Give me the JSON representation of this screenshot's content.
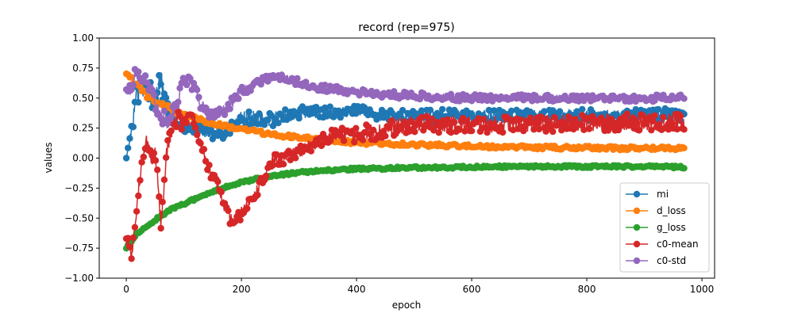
{
  "chart_data": {
    "type": "line",
    "title": "record (rep=975)",
    "xlabel": "epoch",
    "ylabel": "values",
    "xlim": [
      -47,
      1022
    ],
    "ylim": [
      -1.0,
      1.0
    ],
    "xticks": [
      0,
      200,
      400,
      600,
      800,
      1000
    ],
    "yticks": [
      -1.0,
      -0.75,
      -0.5,
      -0.25,
      0.0,
      0.25,
      0.5,
      0.75,
      1.0
    ],
    "xtick_labels": [
      "0",
      "200",
      "400",
      "600",
      "800",
      "1000"
    ],
    "ytick_labels": [
      "−1.00",
      "−0.75",
      "−0.50",
      "−0.25",
      "0.00",
      "0.25",
      "0.50",
      "0.75",
      "1.00"
    ],
    "grid": false,
    "legend_position": "lower-right",
    "marker": "circle",
    "series": [
      {
        "name": "mi",
        "color": "#1f77b4",
        "x": [
          0,
          10,
          20,
          30,
          40,
          50,
          60,
          70,
          80,
          90,
          100,
          120,
          140,
          160,
          180,
          200,
          225,
          250,
          275,
          300,
          325,
          350,
          375,
          400,
          450,
          500,
          550,
          600,
          650,
          700,
          750,
          800,
          850,
          900,
          950,
          970
        ],
        "y": [
          0.0,
          0.25,
          0.55,
          0.6,
          0.55,
          0.5,
          0.65,
          0.4,
          0.35,
          0.28,
          0.25,
          0.25,
          0.22,
          0.2,
          0.25,
          0.32,
          0.33,
          0.32,
          0.35,
          0.38,
          0.38,
          0.38,
          0.37,
          0.4,
          0.35,
          0.35,
          0.36,
          0.35,
          0.35,
          0.36,
          0.35,
          0.36,
          0.35,
          0.36,
          0.37,
          0.35
        ],
        "spread": [
          0.0,
          0.05,
          0.12,
          0.1,
          0.12,
          0.12,
          0.1,
          0.1,
          0.06,
          0.05,
          0.05,
          0.05,
          0.05,
          0.06,
          0.06,
          0.07,
          0.07,
          0.06,
          0.06,
          0.05,
          0.05,
          0.05,
          0.05,
          0.04,
          0.05,
          0.05,
          0.05,
          0.05,
          0.05,
          0.05,
          0.05,
          0.05,
          0.05,
          0.05,
          0.05,
          0.05
        ]
      },
      {
        "name": "d_loss",
        "color": "#ff7f0e",
        "x": [
          0,
          10,
          20,
          30,
          40,
          50,
          60,
          80,
          100,
          120,
          150,
          200,
          250,
          300,
          350,
          400,
          450,
          500,
          600,
          700,
          800,
          900,
          970
        ],
        "y": [
          0.7,
          0.65,
          0.6,
          0.55,
          0.5,
          0.47,
          0.45,
          0.4,
          0.36,
          0.33,
          0.29,
          0.24,
          0.2,
          0.17,
          0.15,
          0.13,
          0.12,
          0.11,
          0.1,
          0.09,
          0.085,
          0.08,
          0.08
        ],
        "spread": [
          0.01,
          0.02,
          0.02,
          0.02,
          0.02,
          0.02,
          0.02,
          0.02,
          0.015,
          0.015,
          0.015,
          0.015,
          0.015,
          0.015,
          0.015,
          0.015,
          0.015,
          0.015,
          0.015,
          0.015,
          0.015,
          0.015,
          0.015
        ]
      },
      {
        "name": "g_loss",
        "color": "#2ca02c",
        "x": [
          0,
          10,
          20,
          40,
          60,
          80,
          100,
          150,
          200,
          250,
          300,
          350,
          400,
          450,
          500,
          600,
          700,
          800,
          900,
          970
        ],
        "y": [
          -0.75,
          -0.68,
          -0.62,
          -0.55,
          -0.48,
          -0.42,
          -0.38,
          -0.28,
          -0.2,
          -0.15,
          -0.12,
          -0.1,
          -0.09,
          -0.085,
          -0.08,
          -0.075,
          -0.07,
          -0.07,
          -0.07,
          -0.075
        ],
        "spread": [
          0.01,
          0.01,
          0.01,
          0.01,
          0.01,
          0.01,
          0.01,
          0.01,
          0.01,
          0.01,
          0.01,
          0.01,
          0.01,
          0.01,
          0.01,
          0.01,
          0.01,
          0.01,
          0.01,
          0.01
        ]
      },
      {
        "name": "c0-mean",
        "color": "#d62728",
        "x": [
          0,
          10,
          15,
          20,
          25,
          30,
          35,
          40,
          45,
          50,
          55,
          60,
          65,
          70,
          75,
          80,
          85,
          90,
          95,
          100,
          110,
          120,
          130,
          140,
          150,
          160,
          170,
          180,
          190,
          200,
          210,
          220,
          230,
          240,
          250,
          260,
          270,
          280,
          290,
          300,
          320,
          340,
          360,
          380,
          400,
          420,
          440,
          460,
          480,
          500,
          550,
          600,
          650,
          700,
          750,
          800,
          850,
          900,
          950,
          970
        ],
        "y": [
          -0.68,
          -0.8,
          -0.55,
          -0.3,
          -0.1,
          0.0,
          0.15,
          0.05,
          0.0,
          0.05,
          -0.2,
          -0.55,
          -0.3,
          0.05,
          0.15,
          0.25,
          0.3,
          0.35,
          0.28,
          0.3,
          0.35,
          0.3,
          0.1,
          -0.05,
          -0.15,
          -0.25,
          -0.4,
          -0.5,
          -0.55,
          -0.45,
          -0.4,
          -0.3,
          -0.25,
          -0.15,
          -0.05,
          0.0,
          -0.02,
          0.0,
          0.05,
          0.05,
          0.1,
          0.15,
          0.18,
          0.2,
          0.2,
          0.22,
          0.22,
          0.25,
          0.27,
          0.28,
          0.28,
          0.28,
          0.28,
          0.29,
          0.29,
          0.29,
          0.3,
          0.3,
          0.3,
          0.3
        ],
        "spread": [
          0.05,
          0.05,
          0.06,
          0.06,
          0.06,
          0.06,
          0.06,
          0.06,
          0.06,
          0.06,
          0.06,
          0.06,
          0.06,
          0.06,
          0.06,
          0.06,
          0.06,
          0.06,
          0.06,
          0.06,
          0.06,
          0.05,
          0.05,
          0.05,
          0.05,
          0.05,
          0.05,
          0.05,
          0.05,
          0.05,
          0.05,
          0.05,
          0.05,
          0.05,
          0.05,
          0.05,
          0.05,
          0.05,
          0.05,
          0.05,
          0.06,
          0.06,
          0.06,
          0.06,
          0.07,
          0.07,
          0.07,
          0.07,
          0.07,
          0.07,
          0.07,
          0.07,
          0.07,
          0.07,
          0.07,
          0.07,
          0.07,
          0.07,
          0.07,
          0.07
        ]
      },
      {
        "name": "c0-std",
        "color": "#9467bd",
        "x": [
          0,
          10,
          15,
          20,
          30,
          40,
          50,
          60,
          70,
          80,
          90,
          100,
          110,
          120,
          130,
          140,
          150,
          160,
          170,
          180,
          200,
          225,
          250,
          275,
          300,
          325,
          350,
          375,
          400,
          450,
          500,
          550,
          600,
          650,
          700,
          750,
          800,
          850,
          900,
          950,
          970
        ],
        "y": [
          0.6,
          0.55,
          0.72,
          0.7,
          0.65,
          0.6,
          0.45,
          0.35,
          0.3,
          0.35,
          0.5,
          0.65,
          0.65,
          0.55,
          0.45,
          0.4,
          0.35,
          0.38,
          0.4,
          0.45,
          0.55,
          0.62,
          0.67,
          0.67,
          0.63,
          0.6,
          0.58,
          0.57,
          0.55,
          0.53,
          0.52,
          0.51,
          0.5,
          0.5,
          0.5,
          0.5,
          0.5,
          0.5,
          0.5,
          0.5,
          0.5
        ],
        "spread": [
          0.03,
          0.04,
          0.05,
          0.05,
          0.06,
          0.07,
          0.08,
          0.08,
          0.07,
          0.07,
          0.05,
          0.04,
          0.04,
          0.05,
          0.05,
          0.05,
          0.05,
          0.05,
          0.05,
          0.04,
          0.04,
          0.03,
          0.03,
          0.03,
          0.03,
          0.03,
          0.03,
          0.03,
          0.03,
          0.03,
          0.03,
          0.03,
          0.03,
          0.03,
          0.03,
          0.03,
          0.03,
          0.03,
          0.03,
          0.03,
          0.03
        ]
      }
    ]
  }
}
